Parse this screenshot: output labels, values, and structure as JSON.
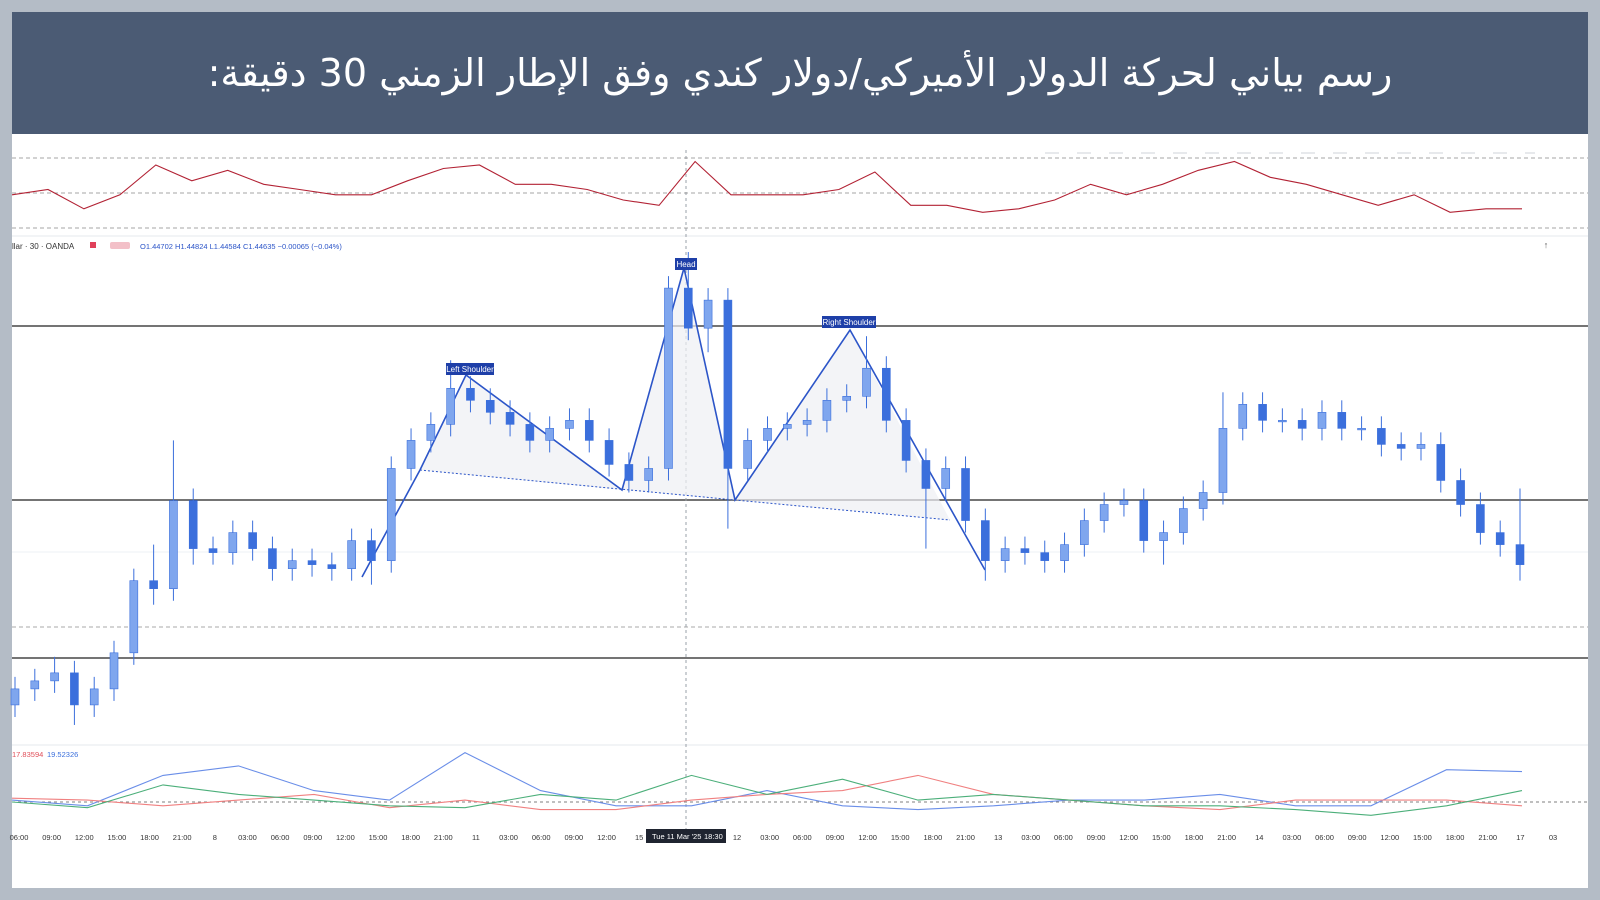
{
  "header": {
    "title": "رسم بياني لحركة الدولار الأميركي/دولار كندي وفق الإطار الزمني 30 دقيقة:"
  },
  "chart_data": {
    "type": "candlestick",
    "symbol_label": "llar · 30 · OANDA",
    "ohlc_label": "O1.44702 H1.44824 L1.44584 C1.44635 −0.00065 (−0.04%)",
    "ylim": [
      1.4418,
      1.4544
    ],
    "open": [
      1.4428,
      1.4432,
      1.4434,
      1.4436,
      1.4428,
      1.4432,
      1.4441,
      1.4459,
      1.4457,
      1.4479,
      1.4467,
      1.4466,
      1.4471,
      1.4467,
      1.4462,
      1.4464,
      1.4463,
      1.4462,
      1.4469,
      1.4464,
      1.4487,
      1.4494,
      1.4498,
      1.4507,
      1.4504,
      1.4501,
      1.4498,
      1.4494,
      1.4497,
      1.4499,
      1.4494,
      1.4488,
      1.4484,
      1.4487,
      1.4532,
      1.4522,
      1.4529,
      1.4487,
      1.4494,
      1.4497,
      1.4498,
      1.4499,
      1.4504,
      1.4505,
      1.4512,
      1.4499,
      1.4489,
      1.4482,
      1.4487,
      1.4474,
      1.4464,
      1.4467,
      1.4466,
      1.4464,
      1.4468,
      1.4474,
      1.4478,
      1.4479,
      1.4469,
      1.4471,
      1.4477,
      1.4481,
      1.4497,
      1.4503,
      1.4499,
      1.4499,
      1.4497,
      1.4501,
      1.4497,
      1.4497,
      1.4493,
      1.4492,
      1.4493,
      1.4484,
      1.4478,
      1.4471,
      1.4468
    ],
    "high": [
      1.4435,
      1.4437,
      1.444,
      1.4439,
      1.4435,
      1.4444,
      1.4462,
      1.4468,
      1.4494,
      1.4482,
      1.447,
      1.4474,
      1.4474,
      1.447,
      1.4467,
      1.4467,
      1.4466,
      1.4472,
      1.4472,
      1.449,
      1.4497,
      1.4501,
      1.4514,
      1.451,
      1.4507,
      1.4504,
      1.4501,
      1.45,
      1.4502,
      1.4502,
      1.4497,
      1.4491,
      1.449,
      1.4535,
      1.4541,
      1.4532,
      1.4532,
      1.4497,
      1.45,
      1.4501,
      1.4502,
      1.4507,
      1.4508,
      1.452,
      1.4515,
      1.4502,
      1.4492,
      1.449,
      1.449,
      1.4477,
      1.447,
      1.447,
      1.4469,
      1.4471,
      1.4477,
      1.4481,
      1.4482,
      1.4482,
      1.4474,
      1.448,
      1.4484,
      1.4506,
      1.4506,
      1.4506,
      1.4502,
      1.4502,
      1.4504,
      1.4504,
      1.45,
      1.45,
      1.4496,
      1.4496,
      1.4496,
      1.4487,
      1.4481,
      1.4474,
      1.4482
    ],
    "low": [
      1.4425,
      1.4429,
      1.4431,
      1.4423,
      1.4425,
      1.4429,
      1.4438,
      1.4453,
      1.4454,
      1.4463,
      1.4463,
      1.4463,
      1.4464,
      1.4459,
      1.4459,
      1.446,
      1.4459,
      1.4459,
      1.4458,
      1.4461,
      1.4484,
      1.4491,
      1.4495,
      1.4501,
      1.4498,
      1.4495,
      1.4491,
      1.4491,
      1.4494,
      1.4491,
      1.4485,
      1.4481,
      1.4481,
      1.4484,
      1.4519,
      1.4516,
      1.4472,
      1.4484,
      1.4491,
      1.4494,
      1.4495,
      1.4496,
      1.4501,
      1.4502,
      1.4496,
      1.4486,
      1.4467,
      1.4479,
      1.4471,
      1.4459,
      1.4461,
      1.4463,
      1.4461,
      1.4461,
      1.4465,
      1.4471,
      1.4475,
      1.4466,
      1.4463,
      1.4468,
      1.4474,
      1.4478,
      1.4494,
      1.4496,
      1.4496,
      1.4494,
      1.4494,
      1.4494,
      1.4494,
      1.449,
      1.4489,
      1.4489,
      1.4481,
      1.4475,
      1.4468,
      1.4465,
      1.4459
    ],
    "close": [
      1.4432,
      1.4434,
      1.4436,
      1.4428,
      1.4432,
      1.4441,
      1.4459,
      1.4457,
      1.4479,
      1.4467,
      1.4466,
      1.4471,
      1.4467,
      1.4462,
      1.4464,
      1.4463,
      1.4462,
      1.4469,
      1.4464,
      1.4487,
      1.4494,
      1.4498,
      1.4507,
      1.4504,
      1.4501,
      1.4498,
      1.4494,
      1.4497,
      1.4499,
      1.4494,
      1.4488,
      1.4484,
      1.4487,
      1.4532,
      1.4522,
      1.4529,
      1.4487,
      1.4494,
      1.4497,
      1.4498,
      1.4499,
      1.4504,
      1.4505,
      1.4512,
      1.4499,
      1.4489,
      1.4482,
      1.4487,
      1.4474,
      1.4464,
      1.4467,
      1.4466,
      1.4464,
      1.4468,
      1.4474,
      1.4478,
      1.4479,
      1.4469,
      1.4471,
      1.4477,
      1.4481,
      1.4497,
      1.4503,
      1.4499,
      1.4499,
      1.4497,
      1.4501,
      1.4497,
      1.4497,
      1.4493,
      1.4492,
      1.4493,
      1.4484,
      1.4478,
      1.4471,
      1.4468,
      1.4463
    ],
    "up_color": "#7fa6ee",
    "down_color": "#3b6fdc",
    "annotations": [
      "Left Shoulder",
      "Head",
      "Right Shoulder"
    ],
    "x_labels": [
      "06:00",
      "09:00",
      "12:00",
      "15:00",
      "18:00",
      "21:00",
      "8",
      "03:00",
      "06:00",
      "09:00",
      "12:00",
      "15:00",
      "18:00",
      "21:00",
      "11",
      "03:00",
      "06:00",
      "09:00",
      "12:00",
      "15",
      null,
      null,
      "12",
      "03:00",
      "06:00",
      "09:00",
      "12:00",
      "15:00",
      "18:00",
      "21:00",
      "13",
      "03:00",
      "06:00",
      "09:00",
      "12:00",
      "15:00",
      "18:00",
      "21:00",
      "14",
      "03:00",
      "06:00",
      "09:00",
      "12:00",
      "15:00",
      "18:00",
      "21:00",
      "17",
      "03"
    ],
    "crosshair_date": "Tue 11 Mar '25",
    "crosshair_time": "18:30",
    "rsi": {
      "color": "#b22234",
      "ylim": [
        26,
        74
      ],
      "levels": [
        70,
        50,
        30
      ],
      "values": [
        49,
        52,
        41,
        49,
        66,
        57,
        63,
        55,
        52,
        49,
        49,
        57,
        64,
        66,
        55,
        55,
        52,
        46,
        43,
        68,
        49,
        49,
        49,
        52,
        62,
        43,
        43,
        39,
        41,
        46,
        55,
        49,
        55,
        63,
        68,
        59,
        55,
        49,
        43,
        49,
        39,
        41,
        41
      ]
    },
    "dmi": {
      "ylim": [
        0,
        50
      ],
      "level": 20,
      "legend_values": [
        17.83594,
        19.52326
      ],
      "legend_colors": [
        "#e0505a",
        "#3b6fdc"
      ],
      "series": [
        {
          "color": "#6a8ee8",
          "values": [
            21,
            18,
            34,
            39,
            26,
            21,
            46,
            26,
            18,
            18,
            26,
            18,
            16,
            18,
            21,
            21,
            24,
            18,
            18,
            37,
            36
          ]
        },
        {
          "color": "#f08080",
          "values": [
            22,
            21,
            18,
            21,
            24,
            17,
            21,
            16,
            16,
            21,
            24,
            26,
            34,
            24,
            21,
            18,
            16,
            21,
            21,
            21,
            18
          ]
        },
        {
          "color": "#4caf7a",
          "values": [
            20,
            17,
            29,
            24,
            21,
            18,
            17,
            24,
            21,
            34,
            24,
            32,
            21,
            24,
            21,
            18,
            18,
            16,
            13,
            18,
            26
          ]
        }
      ]
    }
  }
}
